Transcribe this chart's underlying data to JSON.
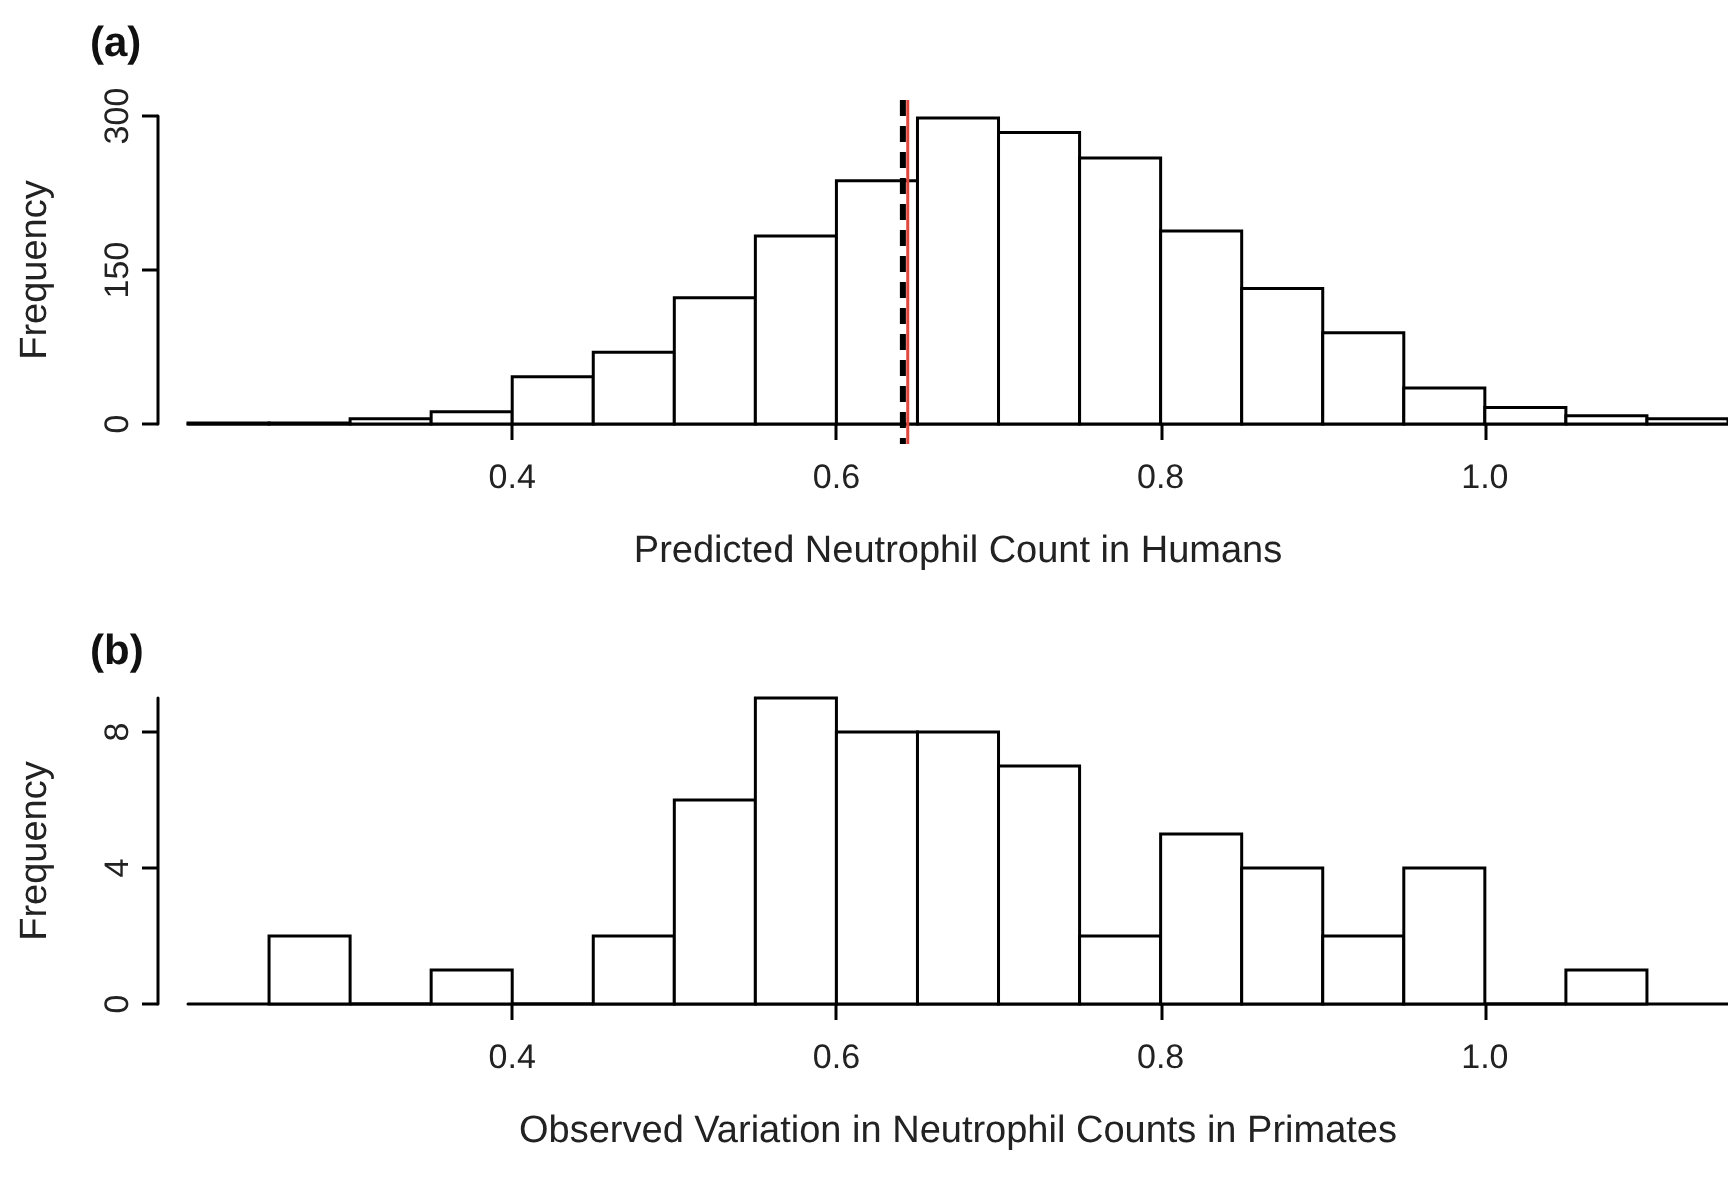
{
  "chart_data": [
    {
      "type": "histogram",
      "title": "(a)",
      "xlabel": "Predicted Neutrophil Count in Humans",
      "ylabel": "Frequency",
      "color": "#ffffff",
      "bins": [
        0.2,
        0.25,
        0.3,
        0.35,
        0.4,
        0.45,
        0.5,
        0.55,
        0.6,
        0.65,
        0.7,
        0.75,
        0.8,
        0.85,
        0.9,
        0.95,
        1.0,
        1.05,
        1.1,
        1.15
      ],
      "values": [
        1,
        1,
        5,
        12,
        46,
        70,
        123,
        183,
        237,
        298,
        284,
        259,
        188,
        132,
        89,
        35,
        16,
        8,
        5
      ],
      "xlim": [
        0.2,
        1.15
      ],
      "xticks": [
        0.4,
        0.6,
        0.8,
        {
          "value": 1.0,
          "label": "1.0"
        }
      ],
      "ylim": [
        0,
        300
      ],
      "yticks": [
        0,
        150,
        300
      ],
      "ref_lines": [
        {
          "axis": "x",
          "value": 0.641,
          "color": "#000000",
          "line_style": "dashed"
        },
        {
          "axis": "x",
          "value": 0.644,
          "color": "#e0463c",
          "line_style": "solid"
        }
      ]
    },
    {
      "type": "histogram",
      "title": "(b)",
      "xlabel": "Observed Variation in Neutrophil Counts in Primates",
      "ylabel": "Frequency",
      "color": "#ffffff",
      "bins": [
        0.25,
        0.3,
        0.35,
        0.4,
        0.45,
        0.5,
        0.55,
        0.6,
        0.65,
        0.7,
        0.75,
        0.8,
        0.85,
        0.9,
        0.95,
        1.0,
        1.05,
        1.1
      ],
      "values": [
        2,
        0,
        1,
        0,
        2,
        6,
        9,
        8,
        8,
        7,
        2,
        5,
        4,
        2,
        4,
        0,
        1
      ],
      "xlim": [
        0.2,
        1.15
      ],
      "xticks": [
        0.4,
        0.6,
        0.8,
        {
          "value": 1.0,
          "label": "1.0"
        }
      ],
      "ylim": [
        0,
        9
      ],
      "yticks": [
        0,
        4,
        8
      ]
    }
  ]
}
